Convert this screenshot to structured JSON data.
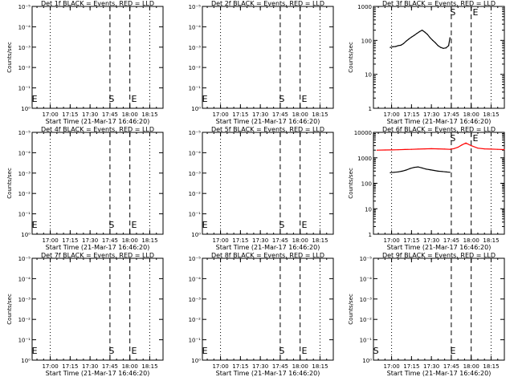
{
  "chart_data": [
    {
      "type": "line",
      "title": "Det 1f BLACK = Events, RED = LLD",
      "xlabel": "Start Time (21-Mar-17 16:46:20)",
      "ylabel": "Counts/sec",
      "xticks": [
        "17:00",
        "17:15",
        "17:30",
        "17:45",
        "18:00",
        "18:15"
      ],
      "yticks": [
        "10⁰",
        "10⁻¹",
        "10⁻²",
        "10⁻³",
        "10⁻⁴",
        "10⁻⁵"
      ],
      "markers": [
        "E",
        "S",
        "E"
      ],
      "series": []
    },
    {
      "type": "line",
      "title": "Det 2f BLACK = Events, RED = LLD",
      "xlabel": "Start Time (21-Mar-17 16:46:20)",
      "ylabel": "",
      "xticks": [
        "17:00",
        "17:15",
        "17:30",
        "17:45",
        "18:00",
        "18:15"
      ],
      "yticks": [
        "10⁰",
        "10⁻¹",
        "10⁻²",
        "10⁻³",
        "10⁻⁴",
        "10⁻⁵"
      ],
      "markers": [
        "E",
        "S",
        "E"
      ],
      "series": []
    },
    {
      "type": "line",
      "title": "Det 3f BLACK = Events, RED = LLD",
      "xlabel": "Start Time (21-Mar-17 16:46:20)",
      "ylabel": "Counts/sec",
      "xticks": [
        "17:00",
        "17:15",
        "17:30",
        "17:45",
        "18:00",
        "18:15"
      ],
      "yticks": [
        "1",
        "10",
        "100",
        "1000"
      ],
      "markers": [
        "S",
        "E"
      ],
      "series": [
        {
          "color": "#000000",
          "x": [
            "16:59",
            "17:01",
            "17:03",
            "17:05",
            "17:07",
            "17:09",
            "17:11",
            "17:13",
            "17:15",
            "17:17",
            "17:19",
            "17:21",
            "17:23",
            "17:25",
            "17:27",
            "17:29",
            "17:31",
            "17:33",
            "17:35",
            "17:37",
            "17:39",
            "17:41",
            "17:43",
            "17:44"
          ],
          "y": [
            62,
            65,
            66,
            70,
            72,
            80,
            95,
            110,
            125,
            140,
            160,
            180,
            200,
            175,
            150,
            120,
            100,
            85,
            70,
            62,
            58,
            60,
            70,
            120
          ]
        }
      ]
    },
    {
      "type": "line",
      "title": "Det 4f BLACK = Events, RED = LLD",
      "xlabel": "Start Time (21-Mar-17 16:46:20)",
      "ylabel": "Counts/sec",
      "xticks": [
        "17:00",
        "17:15",
        "17:30",
        "17:45",
        "18:00",
        "18:15"
      ],
      "yticks": [
        "10⁰",
        "10⁻¹",
        "10⁻²",
        "10⁻³",
        "10⁻⁴",
        "10⁻⁵"
      ],
      "markers": [
        "E",
        "S",
        "E"
      ],
      "series": []
    },
    {
      "type": "line",
      "title": "Det 5f BLACK = Events, RED = LLD",
      "xlabel": "Start Time (21-Mar-17 16:46:20)",
      "ylabel": "",
      "xticks": [
        "17:00",
        "17:15",
        "17:30",
        "17:45",
        "18:00",
        "18:15"
      ],
      "yticks": [
        "10⁰",
        "10⁻¹",
        "10⁻²",
        "10⁻³",
        "10⁻⁴",
        "10⁻⁵"
      ],
      "markers": [
        "E",
        "S",
        "E"
      ],
      "series": []
    },
    {
      "type": "line",
      "title": "Det 6f BLACK = Events, RED = LLD",
      "xlabel": "Start Time (21-Mar-17 16:46:20)",
      "ylabel": "Counts/sec",
      "xticks": [
        "17:00",
        "17:15",
        "17:30",
        "17:45",
        "18:00",
        "18:15"
      ],
      "yticks": [
        "1",
        "10",
        "100",
        "1000",
        "10000"
      ],
      "markers": [
        "S",
        "E"
      ],
      "series": [
        {
          "color": "#000000",
          "x": [
            "16:59",
            "17:02",
            "17:05",
            "17:08",
            "17:11",
            "17:14",
            "17:17",
            "17:20",
            "17:23",
            "17:26",
            "17:29",
            "17:32",
            "17:35",
            "17:38",
            "17:41",
            "17:44"
          ],
          "y": [
            260,
            270,
            280,
            300,
            330,
            380,
            420,
            440,
            400,
            360,
            340,
            320,
            300,
            290,
            280,
            270
          ]
        },
        {
          "color": "#ff0000",
          "x": [
            "16:49",
            "16:55",
            "17:00",
            "17:05",
            "17:10",
            "17:15",
            "17:20",
            "17:25",
            "17:30",
            "17:35",
            "17:40",
            "17:44",
            "17:47",
            "17:50",
            "17:53",
            "17:56",
            "18:00",
            "18:05",
            "18:10",
            "18:15",
            "18:20",
            "18:25"
          ],
          "y": [
            2000,
            2030,
            2050,
            2080,
            2120,
            2150,
            2200,
            2250,
            2280,
            2250,
            2200,
            2150,
            2300,
            2600,
            3200,
            3800,
            3000,
            2400,
            2250,
            2200,
            2150,
            2100
          ]
        }
      ]
    },
    {
      "type": "line",
      "title": "Det 7f BLACK = Events, RED = LLD",
      "xlabel": "Start Time (21-Mar-17 16:46:20)",
      "ylabel": "Counts/sec",
      "xticks": [
        "17:00",
        "17:15",
        "17:30",
        "17:45",
        "18:00",
        "18:15"
      ],
      "yticks": [
        "10⁰",
        "10⁻¹",
        "10⁻²",
        "10⁻³",
        "10⁻⁴",
        "10⁻⁵"
      ],
      "markers": [
        "E",
        "S",
        "E"
      ],
      "series": []
    },
    {
      "type": "line",
      "title": "Det 8f BLACK = Events, RED = LLD",
      "xlabel": "Start Time (21-Mar-17 16:46:20)",
      "ylabel": "",
      "xticks": [
        "17:00",
        "17:15",
        "17:30",
        "17:45",
        "18:00",
        "18:15"
      ],
      "yticks": [
        "10⁰",
        "10⁻¹",
        "10⁻²",
        "10⁻³",
        "10⁻⁴",
        "10⁻⁵"
      ],
      "markers": [
        "E",
        "S",
        "E"
      ],
      "series": []
    },
    {
      "type": "line",
      "title": "Det 9f BLACK = Events, RED = LLD",
      "xlabel": "Start Time (21-Mar-17 16:46:20)",
      "ylabel": "Counts/sec",
      "xticks": [
        "17:00",
        "17:15",
        "17:30",
        "17:45",
        "18:00",
        "18:15"
      ],
      "yticks": [
        "10⁰",
        "10⁻¹",
        "10⁻²",
        "10⁻³",
        "10⁻⁴",
        "10⁻⁵"
      ],
      "markers": [
        "S",
        "E"
      ],
      "series": []
    }
  ]
}
